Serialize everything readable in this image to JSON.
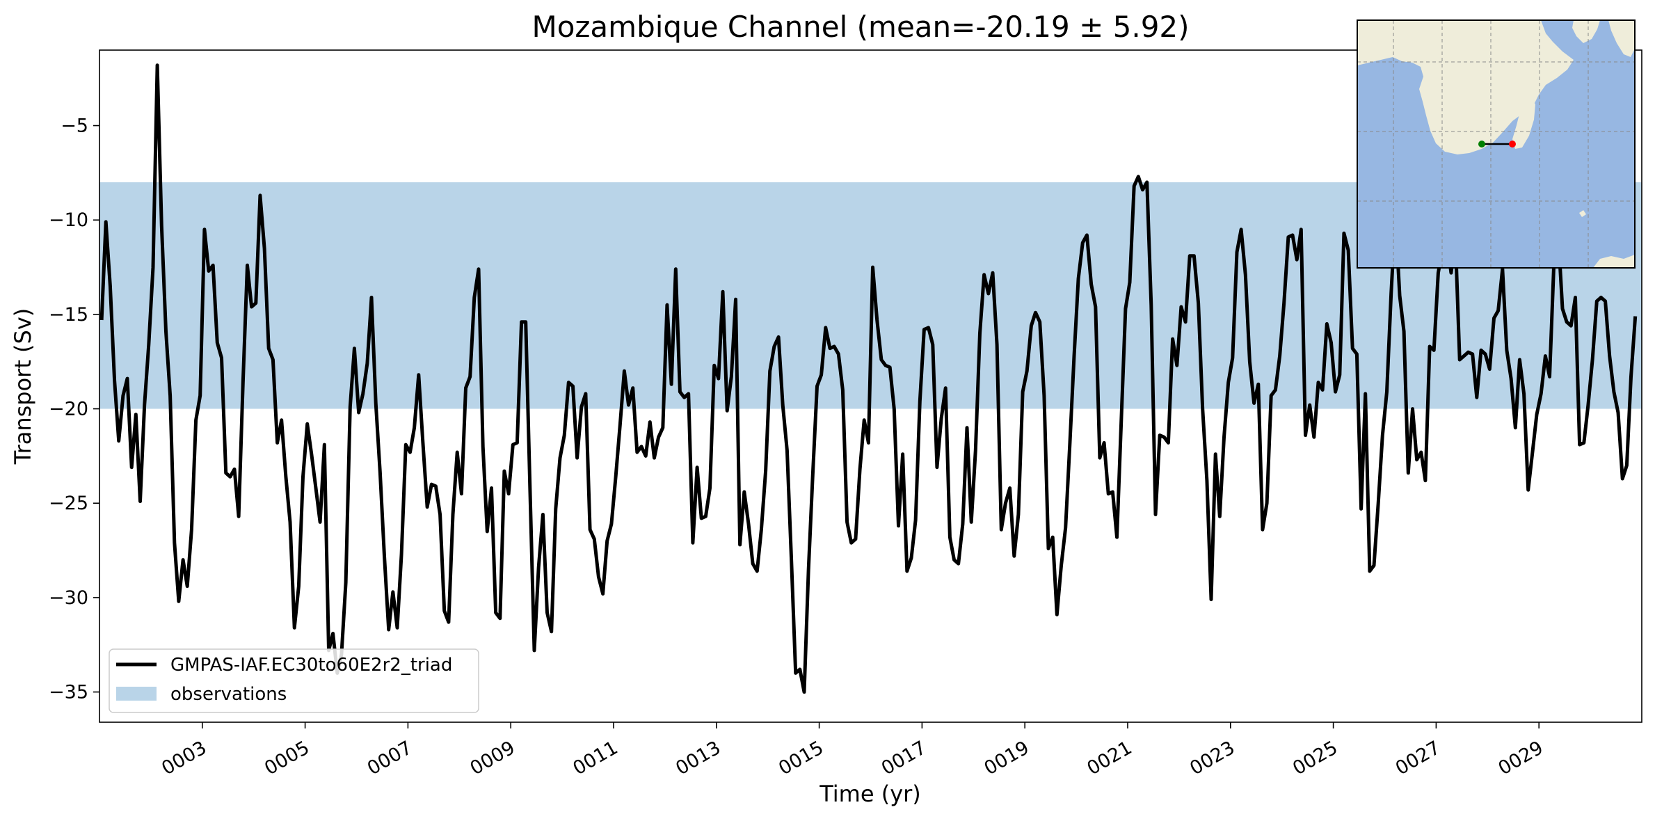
{
  "chart_data": {
    "type": "line",
    "title": "Mozambique Channel (mean=-20.19 ± 5.92)",
    "xlabel": "Time (yr)",
    "ylabel": "Transport (Sv)",
    "xlim": [
      1.0,
      31.0
    ],
    "ylim": [
      -36.6,
      -1.0
    ],
    "x_ticks": [
      3,
      5,
      7,
      9,
      11,
      13,
      15,
      17,
      19,
      21,
      23,
      25,
      27,
      29
    ],
    "x_tick_labels": [
      "0003",
      "0005",
      "0007",
      "0009",
      "0011",
      "0013",
      "0015",
      "0017",
      "0019",
      "0021",
      "0023",
      "0025",
      "0027",
      "0029"
    ],
    "y_ticks": [
      -35,
      -30,
      -25,
      -20,
      -15,
      -10,
      -5
    ],
    "y_tick_labels": [
      "−35",
      "−30",
      "−25",
      "−20",
      "−15",
      "−10",
      "−5"
    ],
    "grid": false,
    "legend_position": "lower-left",
    "observations_band": {
      "name": "observations",
      "ymin": -20.0,
      "ymax": -8.0,
      "color": "#b9d4e8"
    },
    "series": [
      {
        "name": "GMPAS-IAF.EC30to60E2r2_triad",
        "color": "#000000",
        "x_start": 1.0417,
        "x_step": 0.08333,
        "values": [
          -15.3,
          -10.1,
          -13.5,
          -18.5,
          -21.7,
          -19.3,
          -18.4,
          -23.1,
          -20.3,
          -24.9,
          -19.8,
          -16.6,
          -12.5,
          -1.8,
          -10.3,
          -15.9,
          -19.3,
          -27.1,
          -30.2,
          -28.0,
          -29.4,
          -26.4,
          -20.6,
          -19.3,
          -10.5,
          -12.7,
          -12.4,
          -16.5,
          -17.3,
          -23.4,
          -23.6,
          -23.2,
          -25.7,
          -18.6,
          -12.4,
          -14.6,
          -14.4,
          -8.7,
          -11.5,
          -16.8,
          -17.4,
          -21.8,
          -20.6,
          -23.6,
          -26.0,
          -31.6,
          -29.4,
          -23.6,
          -20.8,
          -22.4,
          -24.2,
          -26.0,
          -21.9,
          -32.8,
          -31.9,
          -34.0,
          -33.0,
          -29.2,
          -19.9,
          -16.8,
          -20.2,
          -19.2,
          -17.6,
          -14.1,
          -19.7,
          -23.4,
          -27.8,
          -31.7,
          -29.7,
          -31.6,
          -27.7,
          -21.9,
          -22.3,
          -21.0,
          -18.2,
          -21.8,
          -25.2,
          -24.0,
          -24.1,
          -25.6,
          -30.7,
          -31.3,
          -25.6,
          -22.3,
          -24.5,
          -18.9,
          -18.3,
          -14.1,
          -12.6,
          -22.0,
          -26.5,
          -24.2,
          -30.8,
          -31.1,
          -23.3,
          -24.5,
          -21.9,
          -21.8,
          -15.4,
          -15.4,
          -24.3,
          -32.8,
          -28.4,
          -25.6,
          -30.8,
          -31.8,
          -25.3,
          -22.6,
          -21.4,
          -18.6,
          -18.8,
          -22.6,
          -19.9,
          -19.2,
          -26.4,
          -26.9,
          -28.9,
          -29.8,
          -27.0,
          -26.1,
          -23.6,
          -20.9,
          -18.0,
          -19.8,
          -18.9,
          -22.3,
          -22.0,
          -22.5,
          -20.7,
          -22.6,
          -21.5,
          -21.0,
          -14.5,
          -18.7,
          -12.6,
          -19.1,
          -19.4,
          -19.2,
          -27.1,
          -23.1,
          -25.8,
          -25.7,
          -24.2,
          -17.7,
          -18.4,
          -13.8,
          -20.1,
          -18.3,
          -14.2,
          -27.2,
          -24.4,
          -26.1,
          -28.2,
          -28.6,
          -26.4,
          -23.3,
          -18.0,
          -16.7,
          -16.2,
          -19.8,
          -22.2,
          -27.9,
          -34.0,
          -33.8,
          -35.0,
          -28.5,
          -23.5,
          -18.8,
          -18.2,
          -15.7,
          -16.8,
          -16.7,
          -17.1,
          -19.0,
          -26.0,
          -27.1,
          -26.9,
          -23.2,
          -20.6,
          -21.8,
          -12.5,
          -15.3,
          -17.4,
          -17.7,
          -17.8,
          -20.0,
          -26.2,
          -22.4,
          -28.6,
          -27.9,
          -25.9,
          -19.6,
          -15.8,
          -15.7,
          -16.6,
          -23.1,
          -20.5,
          -18.9,
          -26.8,
          -28.0,
          -28.2,
          -26.1,
          -21.0,
          -26.0,
          -22.2,
          -16.0,
          -12.9,
          -13.9,
          -12.8,
          -16.6,
          -26.4,
          -25.0,
          -24.2,
          -27.8,
          -25.6,
          -19.1,
          -18.0,
          -15.6,
          -14.9,
          -15.4,
          -19.3,
          -27.4,
          -26.8,
          -30.9,
          -28.3,
          -26.3,
          -21.9,
          -17.2,
          -13.1,
          -11.2,
          -10.8,
          -13.4,
          -14.6,
          -22.6,
          -21.8,
          -24.5,
          -24.4,
          -26.8,
          -20.7,
          -14.7,
          -13.3,
          -8.2,
          -7.7,
          -8.4,
          -8.0,
          -14.5,
          -25.6,
          -21.4,
          -21.5,
          -21.8,
          -16.3,
          -17.7,
          -14.6,
          -15.4,
          -11.9,
          -11.9,
          -14.4,
          -20.0,
          -23.8,
          -30.1,
          -22.4,
          -25.7,
          -21.5,
          -18.6,
          -17.3,
          -11.7,
          -10.5,
          -12.9,
          -17.5,
          -19.7,
          -18.7,
          -26.4,
          -25.0,
          -19.3,
          -19.0,
          -17.2,
          -14.4,
          -10.9,
          -10.8,
          -12.1,
          -10.5,
          -21.4,
          -19.8,
          -21.5,
          -18.6,
          -19.0,
          -15.5,
          -16.5,
          -19.1,
          -18.2,
          -10.7,
          -11.6,
          -16.8,
          -17.1,
          -25.3,
          -19.2,
          -28.6,
          -28.3,
          -25.0,
          -21.4,
          -19.1,
          -13.9,
          -9.7,
          -14.0,
          -15.9,
          -23.4,
          -20.0,
          -22.7,
          -22.3,
          -23.8,
          -16.7,
          -16.9,
          -12.8,
          -11.5,
          -11.0,
          -12.8,
          -10.9,
          -17.4,
          -17.2,
          -17.0,
          -17.1,
          -19.4,
          -16.9,
          -17.1,
          -17.9,
          -15.2,
          -14.8,
          -12.6,
          -16.9,
          -18.4,
          -21.0,
          -17.4,
          -19.2,
          -24.3,
          -22.3,
          -20.3,
          -19.2,
          -17.2,
          -18.3,
          -12.3,
          -10.7,
          -14.7,
          -15.4,
          -15.6,
          -14.1,
          -21.9,
          -21.8,
          -19.8,
          -17.4,
          -14.3,
          -14.1,
          -14.3,
          -17.2,
          -19.1,
          -20.2,
          -23.7,
          -23.0,
          -18.3,
          -15.1
        ]
      }
    ],
    "inset_map": {
      "description_hidden": true,
      "land_color": "#efedda",
      "ocean_color": "#97b7e2",
      "start_point_color": "#008000",
      "end_point_color": "#ff0000"
    }
  }
}
